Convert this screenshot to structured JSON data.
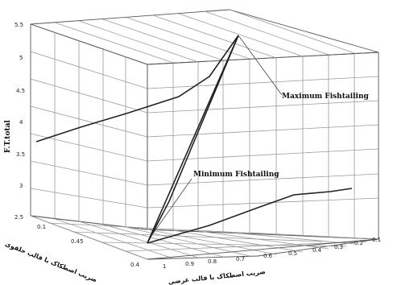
{
  "chart_data": {
    "type": "line",
    "ylabel": "F.T.total",
    "xlabel": "ضریب اصطکاک با قالب عرضی",
    "x2label": "ضریب اصطکاک با قالب حلقوی",
    "z_ticks": [
      "2.5",
      "3",
      "3.5",
      "4",
      "4.5",
      "5",
      "5.5"
    ],
    "x_ticks": [
      "0.1",
      "0.2",
      "0.3",
      "0.4",
      "0.5",
      "0.6",
      "0.7",
      "0.8",
      "0.9",
      "1"
    ],
    "depth_ticks": [
      "0.1",
      "0.45",
      "0.4"
    ],
    "zlim": [
      2.5,
      5.5
    ],
    "grid": true,
    "annotations": [
      "Maximum Fishtailing",
      "Minimum Fishtailing"
    ],
    "series": [
      {
        "values": []
      }
    ]
  }
}
